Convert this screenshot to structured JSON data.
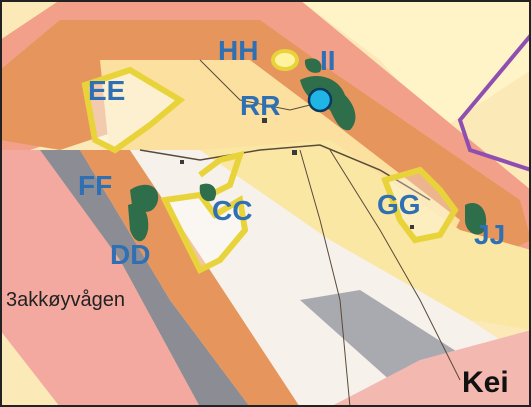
{
  "map": {
    "place_labels": [
      {
        "id": "hh",
        "text": "HH"
      },
      {
        "id": "ii",
        "text": "II"
      },
      {
        "id": "ee",
        "text": "EE"
      },
      {
        "id": "rr",
        "text": "RR"
      },
      {
        "id": "ff",
        "text": "FF"
      },
      {
        "id": "cc",
        "text": "CC"
      },
      {
        "id": "gg",
        "text": "GG"
      },
      {
        "id": "dd",
        "text": "DD"
      },
      {
        "id": "jj",
        "text": "JJ"
      }
    ],
    "road_name": "3akkøyvågen",
    "corner_text": "Kei",
    "colors": {
      "label_blue": "#2f6fb3",
      "zone_salmon": "#f2a08a",
      "zone_pink": "#f7c7c4",
      "zone_orange": "#e6955c",
      "zone_yellow": "#fbe7a4",
      "zone_light_yellow": "#fff3c8",
      "zone_grey": "#8c8c94",
      "outline_yellow": "#e8d43a",
      "outline_dark": "#5a4a3a",
      "green_patch": "#2f6e4a",
      "marker_cyan": "#1fb6e6",
      "boundary_purple": "#8e4fb0"
    }
  }
}
